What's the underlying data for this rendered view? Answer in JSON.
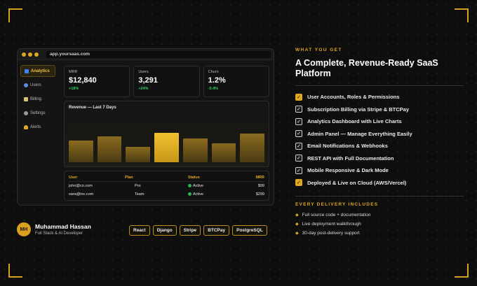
{
  "colors": {
    "accent": "#e0a820",
    "positive": "#34d06a",
    "background": "#0e0e0e"
  },
  "window": {
    "url": "app.yoursaas.com",
    "sidebar": [
      {
        "label": "Analytics",
        "icon": "chart-icon",
        "active": true
      },
      {
        "label": "Users",
        "icon": "users-icon",
        "active": false
      },
      {
        "label": "Billing",
        "icon": "credit-card-icon",
        "active": false
      },
      {
        "label": "Settings",
        "icon": "gear-icon",
        "active": false
      },
      {
        "label": "Alerts",
        "icon": "bell-icon",
        "active": false
      }
    ],
    "stats": [
      {
        "label": "MRR",
        "value": "$12,840",
        "delta": "+18%"
      },
      {
        "label": "Users",
        "value": "3,291",
        "delta": "+24%"
      },
      {
        "label": "Churn",
        "value": "1.2%",
        "delta": "-0.4%"
      }
    ],
    "revenue": {
      "title": "Revenue — Last 7 Days",
      "values": [
        0.48,
        0.58,
        0.34,
        0.66,
        0.53,
        0.42,
        0.64
      ],
      "highlight_index": 3
    },
    "table": {
      "headers": [
        "User",
        "Plan",
        "Status",
        "MRR"
      ],
      "rows": [
        {
          "user": "john@co.com",
          "plan": "Pro",
          "status": "Active",
          "mrr": "$99"
        },
        {
          "user": "sara@inc.com",
          "plan": "Team",
          "status": "Active",
          "mrr": "$299"
        }
      ]
    }
  },
  "author": {
    "initials": "MH",
    "name": "Muhammad Hassan",
    "role": "Full Stack & AI Developer"
  },
  "tech": [
    "React",
    "Django",
    "Stripe",
    "BTCPay",
    "PostgreSQL"
  ],
  "offer": {
    "eyebrow": "WHAT YOU GET",
    "headline": "A Complete, Revenue-Ready SaaS Platform",
    "features": [
      {
        "text": "User Accounts, Roles & Permissions",
        "style": "gold"
      },
      {
        "text": "Subscription Billing via Stripe & BTCPay",
        "style": "dark"
      },
      {
        "text": "Analytics Dashboard with Live Charts",
        "style": "dark"
      },
      {
        "text": "Admin Panel — Manage Everything Easily",
        "style": "dark"
      },
      {
        "text": "Email Notifications & Webhooks",
        "style": "dark"
      },
      {
        "text": "REST API with Full Documentation",
        "style": "dark"
      },
      {
        "text": "Mobile Responsive & Dark Mode",
        "style": "dark"
      },
      {
        "text": "Deployed & Live on Cloud (AWS/Vercel)",
        "style": "gold"
      }
    ],
    "delivery_title": "EVERY DELIVERY INCLUDES",
    "delivery": [
      "Full source code + documentation",
      "Live deployment walkthrough",
      "30-day post-delivery support"
    ]
  }
}
